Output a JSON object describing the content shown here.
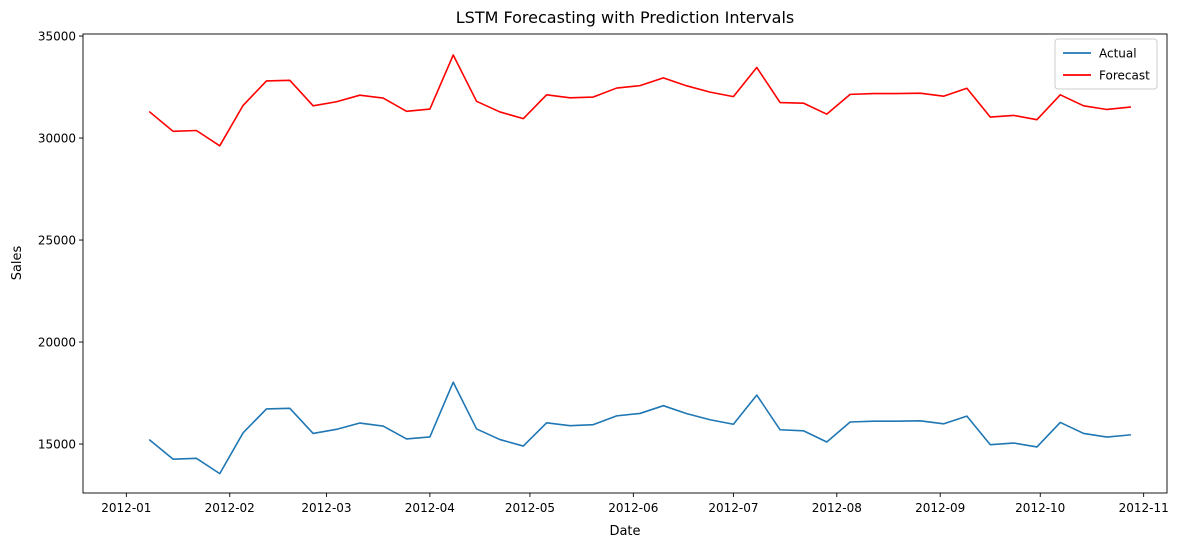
{
  "chart_data": {
    "type": "line",
    "title": "LSTM Forecasting with Prediction Intervals",
    "xlabel": "Date",
    "ylabel": "Sales",
    "xlim": [
      "2011-12-19",
      "2012-11-08"
    ],
    "ylim": [
      12600,
      35100
    ],
    "grid": false,
    "legend_position": "top-right",
    "x_ticks": [
      "2012-01-01",
      "2012-02-01",
      "2012-03-01",
      "2012-04-01",
      "2012-05-01",
      "2012-06-01",
      "2012-07-01",
      "2012-08-01",
      "2012-09-01",
      "2012-10-01",
      "2012-11-01"
    ],
    "x_tick_labels": [
      "2012-01",
      "2012-02",
      "2012-03",
      "2012-04",
      "2012-05",
      "2012-06",
      "2012-07",
      "2012-08",
      "2012-09",
      "2012-10",
      "2012-11"
    ],
    "y_ticks": [
      15000,
      20000,
      25000,
      30000,
      35000
    ],
    "y_tick_labels": [
      "15000",
      "20000",
      "25000",
      "30000",
      "35000"
    ],
    "x": [
      "2012-01-08",
      "2012-01-15",
      "2012-01-22",
      "2012-01-29",
      "2012-02-05",
      "2012-02-12",
      "2012-02-19",
      "2012-02-26",
      "2012-03-04",
      "2012-03-11",
      "2012-03-18",
      "2012-03-25",
      "2012-04-01",
      "2012-04-08",
      "2012-04-15",
      "2012-04-22",
      "2012-04-29",
      "2012-05-06",
      "2012-05-13",
      "2012-05-20",
      "2012-05-27",
      "2012-06-03",
      "2012-06-10",
      "2012-06-17",
      "2012-06-24",
      "2012-07-01",
      "2012-07-08",
      "2012-07-15",
      "2012-07-22",
      "2012-07-29",
      "2012-08-05",
      "2012-08-12",
      "2012-08-19",
      "2012-08-26",
      "2012-09-02",
      "2012-09-09",
      "2012-09-16",
      "2012-09-23",
      "2012-09-30",
      "2012-10-07",
      "2012-10-14",
      "2012-10-21",
      "2012-10-28"
    ],
    "series": [
      {
        "name": "Actual",
        "color": "#1f77b4",
        "values": [
          15200,
          14260,
          14300,
          13550,
          15550,
          16720,
          16750,
          15520,
          15720,
          16030,
          15880,
          15250,
          15350,
          18030,
          15740,
          15220,
          14900,
          16040,
          15900,
          15950,
          16380,
          16500,
          16880,
          16490,
          16190,
          15970,
          17400,
          15700,
          15650,
          15100,
          16080,
          16120,
          16120,
          16140,
          15990,
          16370,
          14970,
          15050,
          14860,
          16060,
          15520,
          15340,
          15450
        ]
      },
      {
        "name": "Forecast",
        "color": "#ff0000",
        "values": [
          31280,
          30330,
          30370,
          29620,
          31600,
          32800,
          32830,
          31580,
          31780,
          32100,
          31960,
          31310,
          31420,
          34070,
          31800,
          31280,
          30950,
          32120,
          31970,
          32010,
          32450,
          32570,
          32950,
          32560,
          32250,
          32030,
          33460,
          31740,
          31710,
          31170,
          32140,
          32180,
          32180,
          32200,
          32050,
          32440,
          31030,
          31110,
          30900,
          32120,
          31580,
          31400,
          31520
        ]
      }
    ]
  }
}
